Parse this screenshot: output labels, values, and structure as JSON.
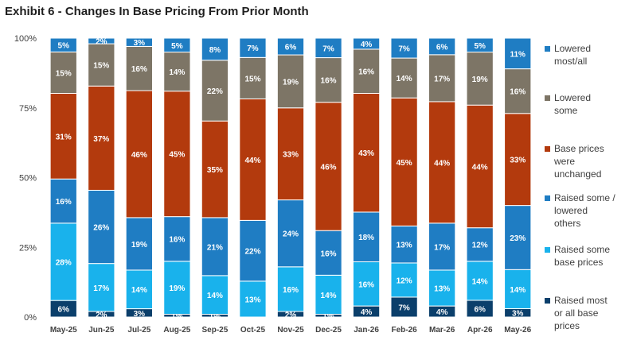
{
  "title": "Exhibit 6 - Changes In Base Pricing From Prior Month",
  "chart_data": {
    "type": "bar",
    "stacked": true,
    "percent": true,
    "categories": [
      "May-25",
      "Jun-25",
      "Jul-25",
      "Aug-25",
      "Sep-25",
      "Oct-25",
      "Nov-25",
      "Dec-25",
      "Jan-26",
      "Feb-26",
      "Mar-26",
      "Apr-26",
      "May-26"
    ],
    "ylim": [
      0,
      100
    ],
    "yticks": [
      "0%",
      "25%",
      "50%",
      "75%",
      "100%"
    ],
    "legend_position": "right",
    "series": [
      {
        "name": "Raised most or all base prices",
        "legend_lines": [
          "Raised most",
          "or all base",
          "prices"
        ],
        "color": "#0b3f6b",
        "values": [
          6,
          2,
          3,
          1,
          1,
          0,
          2,
          1,
          4,
          7,
          4,
          6,
          3
        ]
      },
      {
        "name": "Raised some base prices",
        "legend_lines": [
          "Raised some",
          "base prices"
        ],
        "color": "#19b2ec",
        "values": [
          28,
          17,
          14,
          19,
          14,
          13,
          16,
          14,
          16,
          12,
          13,
          14,
          14
        ]
      },
      {
        "name": "Raised some / lowered others",
        "legend_lines": [
          "Raised some /",
          "lowered",
          "others"
        ],
        "color": "#1f7dc3",
        "values": [
          16,
          26,
          19,
          16,
          21,
          22,
          24,
          16,
          18,
          13,
          17,
          12,
          23
        ]
      },
      {
        "name": "Base prices were unchanged",
        "legend_lines": [
          "Base prices",
          "were",
          "unchanged"
        ],
        "color": "#b33a0d",
        "values": [
          31,
          37,
          46,
          45,
          35,
          44,
          33,
          46,
          43,
          45,
          44,
          44,
          33
        ]
      },
      {
        "name": "Lowered some",
        "legend_lines": [
          "Lowered",
          "some"
        ],
        "color": "#7d7566",
        "values": [
          15,
          15,
          16,
          14,
          22,
          15,
          19,
          16,
          16,
          14,
          17,
          19,
          16
        ]
      },
      {
        "name": "Lowered most/all",
        "legend_lines": [
          "Lowered",
          "most/all"
        ],
        "color": "#1f7dc3",
        "values": [
          5,
          2,
          3,
          5,
          8,
          7,
          6,
          7,
          4,
          7,
          6,
          5,
          11
        ]
      }
    ]
  }
}
